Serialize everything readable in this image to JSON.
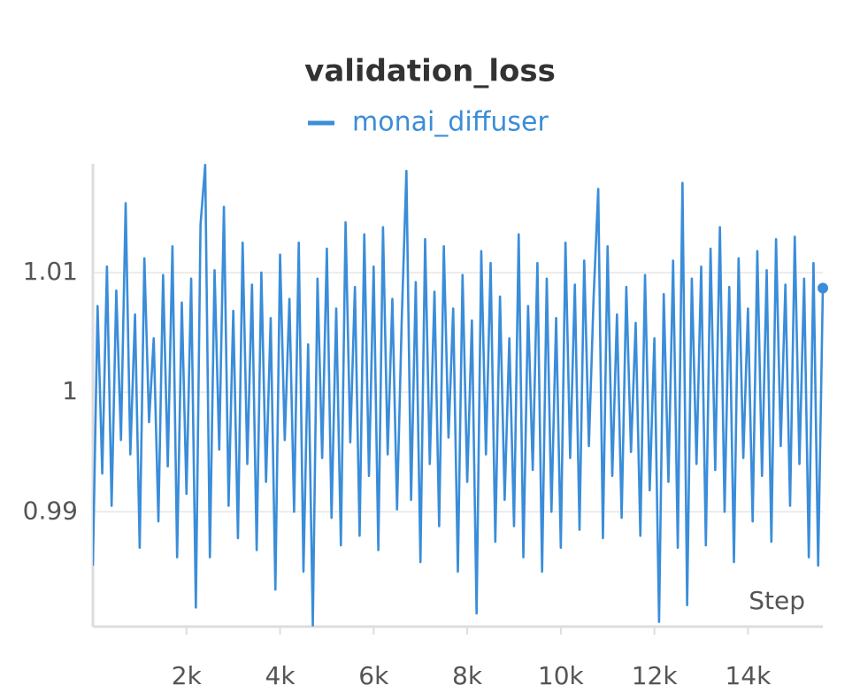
{
  "chart_data": {
    "type": "line",
    "title": "validation_loss",
    "xlabel": "Step",
    "x": [
      0,
      100,
      200,
      300,
      400,
      500,
      600,
      700,
      800,
      900,
      1000,
      1100,
      1200,
      1300,
      1400,
      1500,
      1600,
      1700,
      1800,
      1900,
      2000,
      2100,
      2200,
      2300,
      2400,
      2500,
      2600,
      2700,
      2800,
      2900,
      3000,
      3100,
      3200,
      3300,
      3400,
      3500,
      3600,
      3700,
      3800,
      3900,
      4000,
      4100,
      4200,
      4300,
      4400,
      4500,
      4600,
      4700,
      4800,
      4900,
      5000,
      5100,
      5200,
      5300,
      5400,
      5500,
      5600,
      5700,
      5800,
      5900,
      6000,
      6100,
      6200,
      6300,
      6400,
      6500,
      6600,
      6700,
      6800,
      6900,
      7000,
      7100,
      7200,
      7300,
      7400,
      7500,
      7600,
      7700,
      7800,
      7900,
      8000,
      8100,
      8200,
      8300,
      8400,
      8500,
      8600,
      8700,
      8800,
      8900,
      9000,
      9100,
      9200,
      9300,
      9400,
      9500,
      9600,
      9700,
      9800,
      9900,
      10000,
      10100,
      10200,
      10300,
      10400,
      10500,
      10600,
      10700,
      10800,
      10900,
      11000,
      11100,
      11200,
      11300,
      11400,
      11500,
      11600,
      11700,
      11800,
      11900,
      12000,
      12100,
      12200,
      12300,
      12400,
      12500,
      12600,
      12700,
      12800,
      12900,
      13000,
      13100,
      13200,
      13300,
      13400,
      13500,
      13600,
      13700,
      13800,
      13900,
      14000,
      14100,
      14200,
      14300,
      14400,
      14500,
      14600,
      14700,
      14800,
      14900,
      15000,
      15100,
      15200,
      15300,
      15400,
      15500,
      15600
    ],
    "series": [
      {
        "name": "monai_diffuser",
        "color": "#3a8dd9",
        "values": [
          0.9855,
          1.0072,
          0.9932,
          1.0105,
          0.9905,
          1.0085,
          0.996,
          1.0158,
          0.9948,
          1.0065,
          0.987,
          1.0112,
          0.9975,
          1.0045,
          0.9892,
          1.0098,
          0.9938,
          1.0122,
          0.9862,
          1.0075,
          0.9915,
          1.0095,
          0.982,
          1.014,
          1.019,
          0.9862,
          1.0102,
          0.9952,
          1.0155,
          0.9905,
          1.0068,
          0.9878,
          1.0125,
          0.994,
          1.009,
          0.9868,
          1.01,
          0.9925,
          1.0062,
          0.9835,
          1.0115,
          0.996,
          1.0078,
          0.99,
          1.0125,
          0.985,
          1.004,
          0.9805,
          1.0095,
          0.9945,
          1.012,
          0.9895,
          1.007,
          0.9872,
          1.0142,
          0.9958,
          1.0088,
          0.988,
          1.0132,
          0.993,
          1.0105,
          0.9868,
          1.0138,
          0.9948,
          1.0078,
          0.9902,
          1.006,
          1.0185,
          0.991,
          1.0092,
          0.9858,
          1.0128,
          0.994,
          1.0084,
          0.9888,
          1.0122,
          0.9962,
          1.007,
          0.985,
          1.0098,
          0.9925,
          1.006,
          0.9815,
          1.0118,
          0.9948,
          1.0108,
          0.9875,
          1.008,
          0.991,
          1.0045,
          0.9888,
          1.0132,
          0.9862,
          1.0072,
          0.9935,
          1.0108,
          0.985,
          1.0095,
          0.99,
          1.0062,
          0.987,
          1.0125,
          0.9945,
          1.009,
          0.9885,
          1.011,
          0.9955,
          1.0078,
          1.017,
          0.9878,
          1.0122,
          0.993,
          1.0065,
          0.9895,
          1.0088,
          0.995,
          1.0058,
          0.988,
          1.0098,
          0.9918,
          1.0045,
          0.9808,
          1.0082,
          0.9925,
          1.011,
          0.987,
          1.0175,
          0.9822,
          1.0095,
          0.994,
          1.0105,
          0.9872,
          1.012,
          0.9935,
          1.0138,
          0.99,
          1.0088,
          0.9858,
          1.0112,
          0.9945,
          1.007,
          0.9892,
          1.0118,
          0.993,
          1.0102,
          0.9875,
          1.0128,
          0.9955,
          1.009,
          0.9905,
          1.013,
          0.994,
          1.0095,
          0.9862,
          1.0108,
          0.9855,
          1.0087
        ]
      }
    ],
    "xlim": [
      0,
      15600
    ],
    "ylim": [
      0.9804,
      1.0191
    ],
    "xticks": [
      {
        "value": 2000,
        "label": "2k"
      },
      {
        "value": 4000,
        "label": "4k"
      },
      {
        "value": 6000,
        "label": "6k"
      },
      {
        "value": 8000,
        "label": "8k"
      },
      {
        "value": 10000,
        "label": "10k"
      },
      {
        "value": 12000,
        "label": "12k"
      },
      {
        "value": 14000,
        "label": "14k"
      }
    ],
    "yticks": [
      0.99,
      1,
      1.01
    ],
    "grid": true
  }
}
